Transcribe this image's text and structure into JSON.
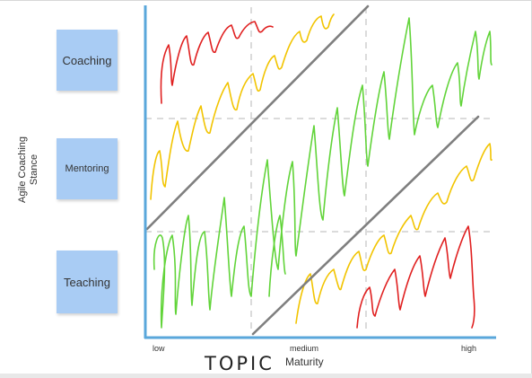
{
  "stickies": {
    "coaching": "Coaching",
    "mentoring": "Mentoring",
    "teaching": "Teaching"
  },
  "y_axis_label": "Agile Coaching Stance",
  "x_axis": {
    "label": "Maturity",
    "ticks": [
      "low",
      "medium",
      "high"
    ]
  },
  "handwritten_note": "TOPIC",
  "colors": {
    "axis": "#5aa7db",
    "divider": "#7f7f7f",
    "grid": "#cfcfcf",
    "red": "#e02020",
    "yellow": "#f2c400",
    "green": "#62d43a",
    "sticky": "#a9ccf4"
  }
}
